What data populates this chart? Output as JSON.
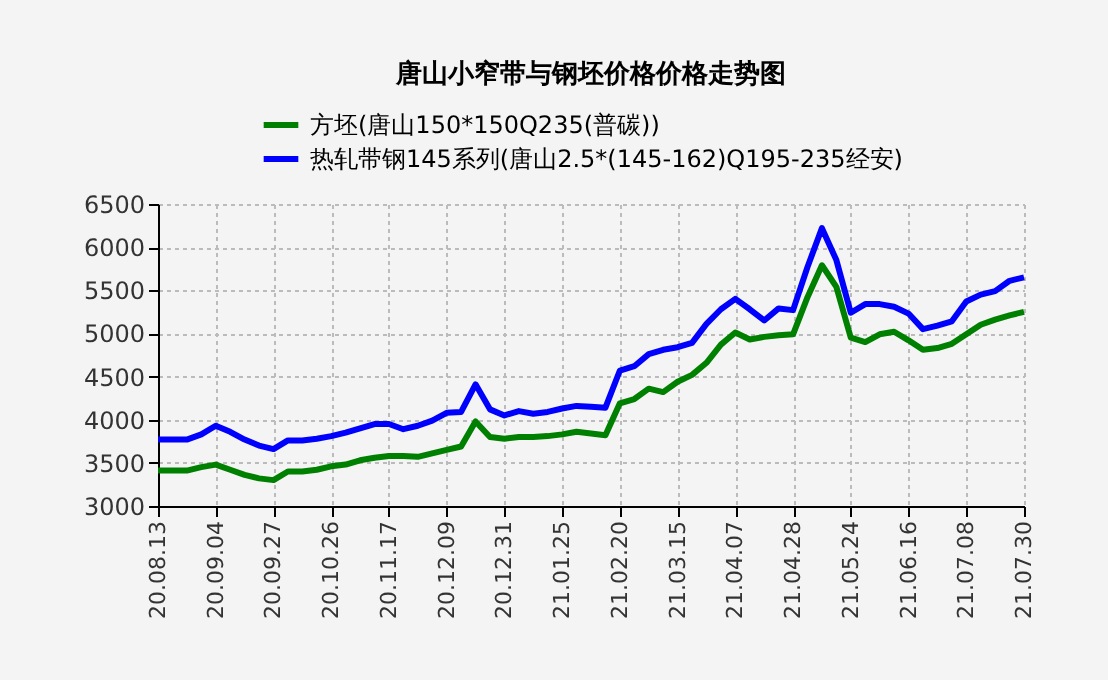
{
  "chart_data": {
    "type": "line",
    "title": "唐山小窄带与钢坯价格价格走势图",
    "categories": [
      "20.08.13",
      null,
      null,
      null,
      "20.09.04",
      null,
      null,
      null,
      "20.09.27",
      null,
      null,
      null,
      "20.10.26",
      null,
      null,
      null,
      "20.11.17",
      null,
      null,
      null,
      "20.12.09",
      null,
      null,
      null,
      "20.12.31",
      null,
      null,
      null,
      "21.01.25",
      null,
      null,
      null,
      "21.02.20",
      null,
      null,
      null,
      "21.03.15",
      null,
      null,
      null,
      "21.04.07",
      null,
      null,
      null,
      "21.04.28",
      null,
      null,
      null,
      "21.05.24",
      null,
      null,
      null,
      "21.06.16",
      null,
      null,
      null,
      "21.07.08",
      null,
      null,
      null,
      "21.07.30"
    ],
    "ylim": [
      3000,
      6500
    ],
    "yticks": [
      3000,
      3500,
      4000,
      4500,
      5000,
      5500,
      6000,
      6500
    ],
    "grid": true,
    "legend": "top",
    "marker": "none",
    "line_style": "solid",
    "series": [
      {
        "name": "方坯(唐山150*150Q235(普碳))",
        "color": "#008000",
        "values": [
          3410,
          3410,
          3410,
          3450,
          3480,
          3420,
          3360,
          3320,
          3300,
          3400,
          3400,
          3420,
          3460,
          3480,
          3530,
          3560,
          3580,
          3580,
          3570,
          3610,
          3650,
          3690,
          3980,
          3800,
          3780,
          3800,
          3800,
          3810,
          3830,
          3860,
          3840,
          3820,
          4190,
          4240,
          4360,
          4320,
          4440,
          4520,
          4660,
          4870,
          5010,
          4930,
          4960,
          4980,
          4990,
          5420,
          5790,
          5540,
          4950,
          4900,
          4990,
          5020,
          4920,
          4810,
          4830,
          4880,
          4990,
          5100,
          5160,
          5210,
          5250
        ]
      },
      {
        "name": "热轧带钢145系列(唐山2.5*(145-162)Q195-235经安)",
        "color": "#0000ff",
        "values": [
          3770,
          3770,
          3770,
          3830,
          3930,
          3860,
          3770,
          3700,
          3660,
          3760,
          3760,
          3780,
          3810,
          3850,
          3900,
          3950,
          3950,
          3890,
          3930,
          3990,
          4080,
          4090,
          4410,
          4120,
          4050,
          4100,
          4070,
          4090,
          4130,
          4160,
          4150,
          4140,
          4570,
          4620,
          4760,
          4810,
          4840,
          4890,
          5110,
          5280,
          5400,
          5280,
          5150,
          5290,
          5270,
          5770,
          6220,
          5850,
          5240,
          5340,
          5340,
          5310,
          5230,
          5050,
          5090,
          5140,
          5370,
          5450,
          5490,
          5610,
          5650
        ]
      }
    ]
  }
}
